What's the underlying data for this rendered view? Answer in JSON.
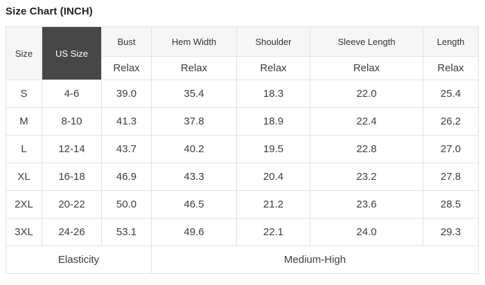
{
  "title": "Size Chart (INCH)",
  "colors": {
    "dark_cell_bg": "#474747",
    "dark_cell_text": "#ffffff",
    "header_bg": "#f6f6f6",
    "border": "#e3e3e3",
    "body_text": "#3c3c3c",
    "title_text": "#222222"
  },
  "chart_data": {
    "type": "table",
    "title": "Size Chart (INCH)",
    "unit": "INCH",
    "header": {
      "size": "Size",
      "us_size": "US Size",
      "measures": [
        "Bust",
        "Hem Width",
        "Shoulder",
        "Sleeve Length",
        "Length"
      ],
      "fit": "Relax"
    },
    "rows": [
      {
        "size": "S",
        "us_size": "4-6",
        "values": [
          "39.0",
          "35.4",
          "18.3",
          "22.0",
          "25.4"
        ]
      },
      {
        "size": "M",
        "us_size": "8-10",
        "values": [
          "41.3",
          "37.8",
          "18.9",
          "22.4",
          "26.2"
        ]
      },
      {
        "size": "L",
        "us_size": "12-14",
        "values": [
          "43.7",
          "40.2",
          "19.5",
          "22.8",
          "27.0"
        ]
      },
      {
        "size": "XL",
        "us_size": "16-18",
        "values": [
          "46.9",
          "43.3",
          "20.4",
          "23.2",
          "27.8"
        ]
      },
      {
        "size": "2XL",
        "us_size": "20-22",
        "values": [
          "50.0",
          "46.5",
          "21.2",
          "23.6",
          "28.5"
        ]
      },
      {
        "size": "3XL",
        "us_size": "24-26",
        "values": [
          "53.1",
          "49.6",
          "22.1",
          "24.0",
          "29.3"
        ]
      }
    ],
    "footer": {
      "label": "Elasticity",
      "value": "Medium-High"
    }
  }
}
